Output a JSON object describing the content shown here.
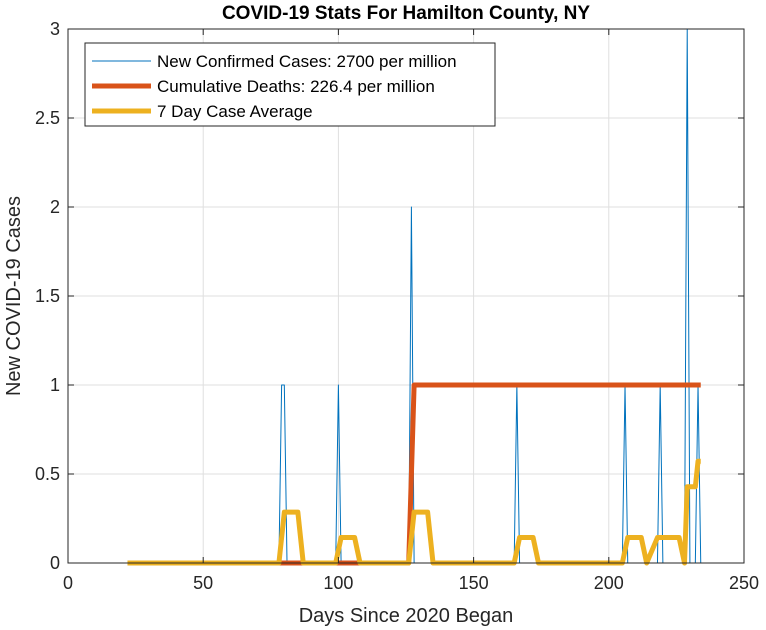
{
  "chart_data": {
    "type": "line",
    "title": "COVID-19 Stats For Hamilton County, NY",
    "xlabel": "Days Since 2020 Began",
    "ylabel": "New COVID-19 Cases",
    "xlim": [
      0,
      250
    ],
    "ylim": [
      0,
      3
    ],
    "xticks": [
      0,
      50,
      100,
      150,
      200,
      250
    ],
    "xtick_labels": [
      "0",
      "50",
      "100",
      "150",
      "200",
      "250"
    ],
    "yticks": [
      0,
      0.5,
      1,
      1.5,
      2,
      2.5,
      3
    ],
    "ytick_labels": [
      "0",
      "0.5",
      "1",
      "1.5",
      "2",
      "2.5",
      "3"
    ],
    "grid": true,
    "legend_position": "top-left",
    "series": [
      {
        "name": "New Confirmed Cases: 2700 per million",
        "color": "#0072BD",
        "line_width": "thin",
        "x": [
          22,
          78,
          79,
          80,
          81,
          99,
          100,
          101,
          126,
          127,
          128,
          165,
          166,
          167,
          205,
          206,
          207,
          218,
          219,
          220,
          228,
          229,
          230,
          232,
          233,
          234
        ],
        "y": [
          0,
          0,
          1,
          1,
          0,
          0,
          1,
          0,
          0,
          2,
          0,
          0,
          1,
          0,
          0,
          1,
          0,
          0,
          1,
          0,
          0,
          3,
          0,
          0,
          1,
          0
        ]
      },
      {
        "name": "Cumulative Deaths: 226.4 per million",
        "color": "#D95319",
        "line_width": "thick",
        "x": [
          22,
          126,
          127,
          128,
          234
        ],
        "y": [
          0,
          0,
          0.5,
          1,
          1
        ]
      },
      {
        "name": "7 Day Case Average",
        "color": "#EDB120",
        "line_width": "thick",
        "x": [
          22,
          78,
          80,
          85,
          87,
          99,
          101,
          106,
          108,
          126,
          128,
          133,
          135,
          165,
          167,
          172,
          174,
          205,
          207,
          212,
          214,
          218,
          220,
          226,
          228,
          229,
          231,
          232,
          233,
          234
        ],
        "y": [
          0,
          0,
          0.2857,
          0.2857,
          0,
          0,
          0.1429,
          0.1429,
          0,
          0,
          0.2857,
          0.2857,
          0,
          0,
          0.1429,
          0.1429,
          0,
          0,
          0.1429,
          0.1429,
          0,
          0.1429,
          0.1429,
          0.1429,
          0,
          0.4286,
          0.4286,
          0.4286,
          0.5714,
          0.5714
        ]
      }
    ]
  }
}
